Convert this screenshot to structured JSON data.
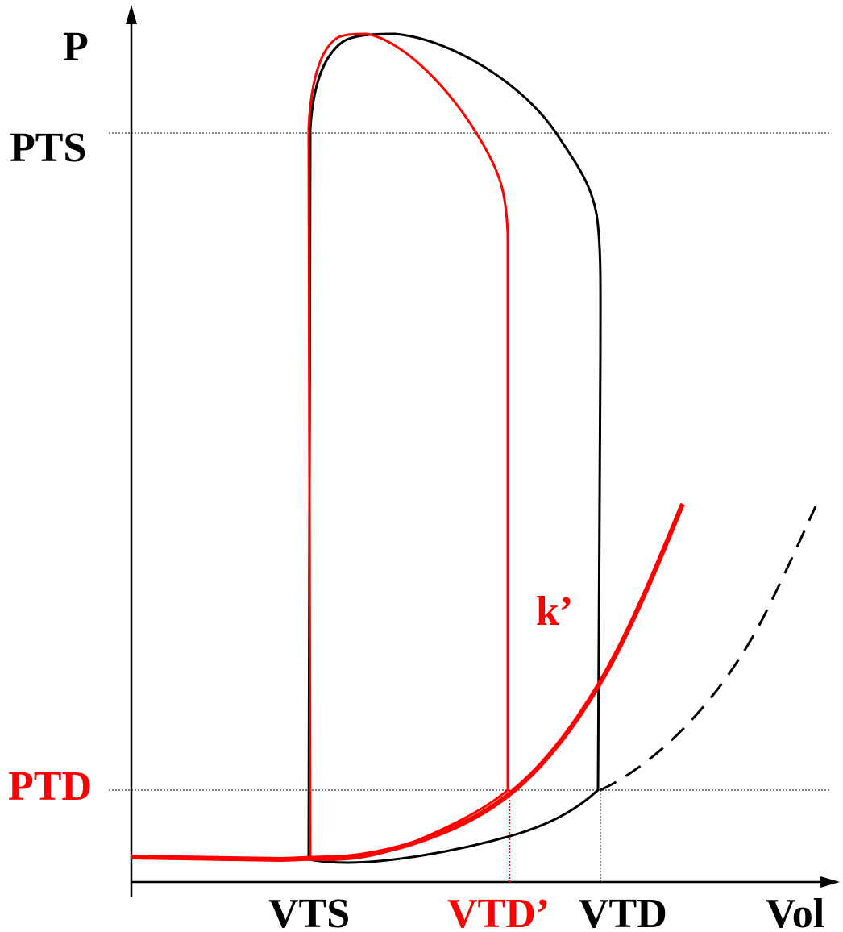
{
  "labels": {
    "y_axis": "P",
    "pts": "PTS",
    "ptd": "PTD",
    "k_prime": "k’",
    "vts": "VTS",
    "vtd_prime": "VTD’",
    "vtd": "VTD",
    "x_axis": "Vol"
  },
  "colors": {
    "baseline": "#000000",
    "modified": "#ff0000",
    "guide": "#000000",
    "background": "#ffffff"
  }
}
